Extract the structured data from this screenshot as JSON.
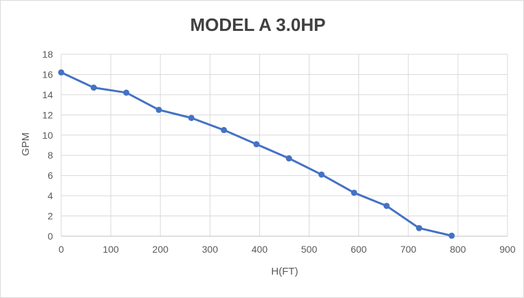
{
  "chart_data": {
    "type": "line",
    "title": "MODEL A 3.0HP",
    "xlabel": "H(FT)",
    "ylabel": "GPM",
    "series": [
      {
        "name": "MODEL A 3.0HP",
        "x": [
          0,
          65.6,
          131.2,
          196.9,
          262.5,
          328.1,
          393.7,
          459.3,
          524.9,
          590.6,
          656.2,
          721.8,
          787.4
        ],
        "y": [
          16.2,
          14.7,
          14.2,
          12.5,
          11.7,
          10.5,
          9.1,
          7.7,
          6.1,
          4.3,
          3.0,
          0.8,
          0.05
        ]
      }
    ],
    "xlim": [
      0,
      900
    ],
    "ylim": [
      0,
      18
    ],
    "x_ticks": [
      0,
      100,
      200,
      300,
      400,
      500,
      600,
      700,
      800,
      900
    ],
    "y_ticks": [
      0,
      2,
      4,
      6,
      8,
      10,
      12,
      14,
      16,
      18
    ],
    "grid": true,
    "legend": false,
    "marker": "circle",
    "colors": {
      "series": "#4472C4",
      "gridline": "#D9D9D9",
      "axis_line": "#BFBFBF",
      "tick_text": "#595959",
      "axis_title_text": "#595959",
      "title_text": "#404040",
      "chart_border": "#D9D9D9",
      "background": "#FFFFFF"
    }
  }
}
